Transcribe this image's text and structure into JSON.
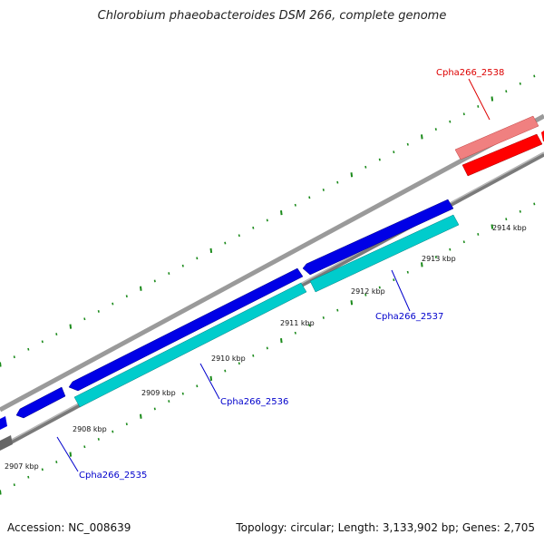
{
  "title": "Chlorobium phaeobacteroides DSM 266, complete genome",
  "footer": {
    "accession": "Accession: NC_008639",
    "summary": "Topology: circular; Length: 3,133,902 bp; Genes: 2,705"
  },
  "colors": {
    "forward_gene": "#0000e6",
    "reverse_gene": "#00cccc",
    "highlight_gene": "#ff0000",
    "highlight_gene_light": "#f08080",
    "tick": "#1a8a1a",
    "backbone": "#888888",
    "forward_label": "#0000cc",
    "highlight_label": "#dd0000"
  },
  "ticks": [
    {
      "label": "2907 kbp"
    },
    {
      "label": "2908 kbp"
    },
    {
      "label": "2909 kbp"
    },
    {
      "label": "2910 kbp"
    },
    {
      "label": "2911 kbp"
    },
    {
      "label": "2912 kbp"
    },
    {
      "label": "2913 kbp"
    },
    {
      "label": "2914 kbp"
    }
  ],
  "genes": [
    {
      "label": "Cpha266_2535"
    },
    {
      "label": "Cpha266_2536"
    },
    {
      "label": "Cpha266_2537"
    },
    {
      "label": "Cpha266_2538"
    }
  ]
}
